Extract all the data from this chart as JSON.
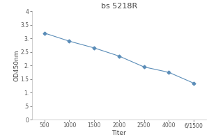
{
  "title": "bs 5218R",
  "xlabel": "Titer",
  "ylabel": "OD450nm",
  "x_tick_labels": [
    "500",
    "1000",
    "1500",
    "2000",
    "2500",
    "4000",
    "6/1500"
  ],
  "x_values": [
    1,
    2,
    3,
    4,
    5,
    6,
    7
  ],
  "y_values": [
    3.2,
    2.9,
    2.65,
    2.35,
    1.95,
    1.75,
    1.35
  ],
  "ylim": [
    0,
    4
  ],
  "yticks": [
    0,
    0.5,
    1.0,
    1.5,
    2.0,
    2.5,
    3.0,
    3.5,
    4.0
  ],
  "ytick_labels": [
    "0",
    ".5",
    "1.",
    "1.5",
    "2.",
    "2.5",
    "3.",
    "3.5",
    "4"
  ],
  "line_color": "#5b8db8",
  "marker": "D",
  "marker_size": 2.5,
  "line_width": 0.8,
  "title_fontsize": 8,
  "axis_label_fontsize": 6.5,
  "tick_fontsize": 5.5,
  "background_color": "#ffffff"
}
